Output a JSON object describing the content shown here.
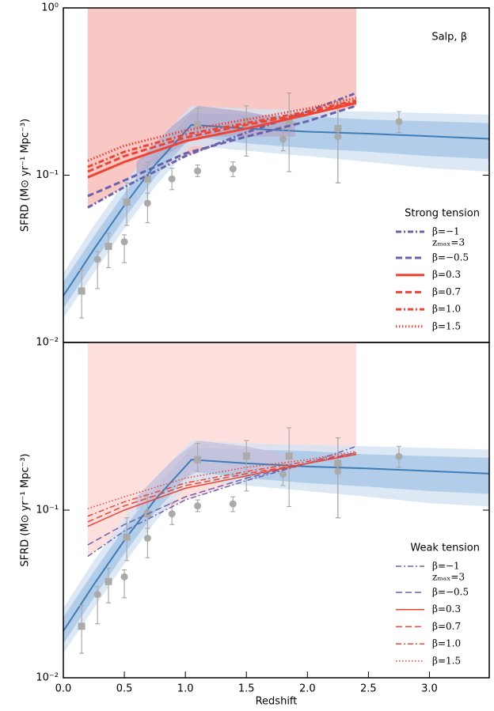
{
  "chart_data": [
    {
      "type": "line",
      "annotation": "Salp, β",
      "ylabel": "SFRD (M⊙ yr⁻¹ Mpc⁻³)",
      "log_y": true,
      "xlim": [
        0,
        3.49
      ],
      "ylim": [
        0.01,
        1
      ],
      "yticks": [
        {
          "value": 1,
          "label": "10⁰"
        },
        {
          "value": 0.1,
          "label": "10⁻¹"
        },
        {
          "value": 0.01,
          "label": "10⁻²"
        }
      ],
      "region": {
        "color": "#f9c7c4",
        "x": [
          0.2,
          0.5,
          1,
          1.5,
          2,
          2.4
        ],
        "lower": [
          0.064,
          0.085,
          0.13,
          0.17,
          0.21,
          0.26
        ]
      },
      "bands": [
        {
          "color": "#d3e3f3",
          "x": [
            0,
            0.25,
            0.5,
            0.75,
            1.05,
            1.5,
            2,
            2.5,
            3,
            3.49
          ],
          "lower": [
            0.014,
            0.026,
            0.048,
            0.085,
            0.15,
            0.14,
            0.13,
            0.12,
            0.11,
            0.105
          ],
          "upper": [
            0.026,
            0.05,
            0.09,
            0.155,
            0.26,
            0.25,
            0.245,
            0.24,
            0.235,
            0.23
          ]
        },
        {
          "color": "#a6c6e6",
          "x": [
            0,
            0.25,
            0.5,
            0.75,
            1.05,
            1.5,
            2,
            2.5,
            3,
            3.49
          ],
          "lower": [
            0.016,
            0.03,
            0.055,
            0.097,
            0.17,
            0.155,
            0.145,
            0.138,
            0.13,
            0.125
          ],
          "upper": [
            0.023,
            0.043,
            0.078,
            0.135,
            0.235,
            0.23,
            0.225,
            0.215,
            0.21,
            0.205
          ]
        },
        {
          "color": "#b7aacb",
          "x": [
            0.6,
            0.9,
            1.1,
            1.5,
            1.9
          ],
          "lower": [
            0.1,
            0.14,
            0.17,
            0.17,
            0.17
          ],
          "upper": [
            0.12,
            0.2,
            0.26,
            0.24,
            0.21
          ]
        }
      ],
      "model": {
        "color": "#3f7cb6",
        "x": [
          0,
          0.25,
          0.5,
          0.75,
          1.05,
          1.5,
          2,
          2.5,
          3,
          3.49
        ],
        "values": [
          0.019,
          0.036,
          0.066,
          0.115,
          0.2,
          0.19,
          0.182,
          0.177,
          0.171,
          0.165
        ]
      },
      "points": [
        {
          "marker": "circle",
          "color": "#aaaaaa",
          "x": [
            0.28,
            0.5,
            0.69,
            0.89,
            1.1,
            1.39,
            1.8,
            2.25,
            2.75
          ],
          "values": [
            0.0314,
            0.04,
            0.068,
            0.095,
            0.106,
            0.109,
            0.164,
            0.17,
            0.209
          ],
          "lo": [
            0.021,
            0.03,
            0.052,
            0.082,
            0.098,
            0.098,
            0.14,
            0.09,
            0.18
          ],
          "hi": [
            0.035,
            0.044,
            0.078,
            0.11,
            0.115,
            0.12,
            0.19,
            0.27,
            0.24
          ]
        },
        {
          "marker": "square",
          "color": "#aaaaaa",
          "x": [
            0.15,
            0.37,
            0.52,
            0.69,
            1.1,
            1.5,
            1.85,
            2.25
          ],
          "values": [
            0.0203,
            0.0375,
            0.069,
            0.095,
            0.2,
            0.21,
            0.21,
            0.19
          ],
          "lo": [
            0.014,
            0.028,
            0.05,
            0.07,
            0.17,
            0.13,
            0.105,
            0.09
          ],
          "hi": [
            0.027,
            0.045,
            0.09,
            0.12,
            0.25,
            0.26,
            0.31,
            0.27
          ]
        }
      ],
      "legend_title": "Strong tension",
      "line_width": 3,
      "series": [
        {
          "name": "β=−1",
          "note": "zₘₐₓ=3",
          "color": "#6b62ad",
          "style": "dashdot",
          "x": [
            0.2,
            0.5,
            1,
            1.5,
            2,
            2.4
          ],
          "values": [
            0.064,
            0.085,
            0.13,
            0.18,
            0.24,
            0.31
          ]
        },
        {
          "name": "β=−0.5",
          "color": "#6b62ad",
          "style": "dashed",
          "x": [
            0.2,
            0.5,
            1,
            1.5,
            2,
            2.4
          ],
          "values": [
            0.075,
            0.093,
            0.135,
            0.17,
            0.21,
            0.26
          ]
        },
        {
          "name": "β=0.3",
          "color": "#ee4433",
          "style": "solid",
          "x": [
            0.2,
            0.5,
            1,
            1.5,
            2,
            2.4
          ],
          "values": [
            0.097,
            0.12,
            0.16,
            0.19,
            0.23,
            0.27
          ]
        },
        {
          "name": "β=0.7",
          "color": "#ee4433",
          "style": "dashed",
          "x": [
            0.2,
            0.5,
            1,
            1.5,
            2,
            2.4
          ],
          "values": [
            0.105,
            0.13,
            0.168,
            0.2,
            0.235,
            0.275
          ]
        },
        {
          "name": "β=1.0",
          "color": "#ee4433",
          "style": "dashdot",
          "x": [
            0.2,
            0.5,
            1,
            1.5,
            2,
            2.4
          ],
          "values": [
            0.112,
            0.138,
            0.175,
            0.205,
            0.24,
            0.28
          ]
        },
        {
          "name": "β=1.5",
          "color": "#ee4433",
          "style": "dotted",
          "x": [
            0.2,
            0.5,
            1,
            1.5,
            2,
            2.4
          ],
          "values": [
            0.122,
            0.15,
            0.185,
            0.215,
            0.25,
            0.29
          ]
        }
      ]
    },
    {
      "type": "line",
      "ylabel": "SFRD (M⊙ yr⁻¹ Mpc⁻³)",
      "xlabel": "Redshift",
      "log_y": true,
      "xlim": [
        0,
        3.49
      ],
      "ylim": [
        0.01,
        1
      ],
      "xticks": [
        {
          "value": 0,
          "label": "0.0"
        },
        {
          "value": 0.5,
          "label": "0.5"
        },
        {
          "value": 1,
          "label": "1.0"
        },
        {
          "value": 1.5,
          "label": "1.5"
        },
        {
          "value": 2,
          "label": "2.0"
        },
        {
          "value": 2.5,
          "label": "2.5"
        },
        {
          "value": 3,
          "label": "3.0"
        }
      ],
      "yticks": [
        {
          "value": 0.1,
          "label": "10⁻¹"
        },
        {
          "value": 0.01,
          "label": "10⁻²"
        }
      ],
      "region": {
        "color": "#fde0de",
        "x": [
          0.2,
          0.5,
          1,
          1.5,
          2,
          2.4
        ],
        "lower": [
          0.053,
          0.075,
          0.115,
          0.15,
          0.19,
          0.24
        ]
      },
      "bands": [
        {
          "color": "#d3e3f3",
          "x": [
            0,
            0.25,
            0.5,
            0.75,
            1.05,
            1.5,
            2,
            2.5,
            3,
            3.49
          ],
          "lower": [
            0.014,
            0.026,
            0.048,
            0.085,
            0.15,
            0.14,
            0.13,
            0.12,
            0.11,
            0.105
          ],
          "upper": [
            0.026,
            0.05,
            0.09,
            0.155,
            0.26,
            0.25,
            0.245,
            0.24,
            0.235,
            0.23
          ]
        },
        {
          "color": "#a6c6e6",
          "x": [
            0,
            0.25,
            0.5,
            0.75,
            1.05,
            1.5,
            2,
            2.5,
            3,
            3.49
          ],
          "lower": [
            0.016,
            0.03,
            0.055,
            0.097,
            0.17,
            0.155,
            0.145,
            0.138,
            0.13,
            0.125
          ],
          "upper": [
            0.023,
            0.043,
            0.078,
            0.135,
            0.235,
            0.23,
            0.225,
            0.215,
            0.21,
            0.205
          ]
        },
        {
          "color": "#c9c0db",
          "x": [
            0.6,
            0.9,
            1.1,
            1.5,
            1.9
          ],
          "lower": [
            0.1,
            0.14,
            0.17,
            0.17,
            0.17
          ],
          "upper": [
            0.12,
            0.2,
            0.26,
            0.24,
            0.21
          ]
        }
      ],
      "model": {
        "color": "#3f7cb6",
        "x": [
          0,
          0.25,
          0.5,
          0.75,
          1.05,
          1.5,
          2,
          2.5,
          3,
          3.49
        ],
        "values": [
          0.019,
          0.036,
          0.066,
          0.115,
          0.2,
          0.19,
          0.182,
          0.177,
          0.171,
          0.165
        ]
      },
      "points": [
        {
          "marker": "circle",
          "color": "#aaaaaa",
          "x": [
            0.28,
            0.5,
            0.69,
            0.89,
            1.1,
            1.39,
            1.8,
            2.25,
            2.75
          ],
          "values": [
            0.0314,
            0.04,
            0.068,
            0.095,
            0.106,
            0.109,
            0.164,
            0.17,
            0.209
          ],
          "lo": [
            0.021,
            0.03,
            0.052,
            0.082,
            0.098,
            0.098,
            0.14,
            0.09,
            0.18
          ],
          "hi": [
            0.035,
            0.044,
            0.078,
            0.11,
            0.115,
            0.12,
            0.19,
            0.27,
            0.24
          ]
        },
        {
          "marker": "square",
          "color": "#aaaaaa",
          "x": [
            0.15,
            0.37,
            0.52,
            0.69,
            1.1,
            1.5,
            1.85,
            2.25
          ],
          "values": [
            0.0203,
            0.0375,
            0.069,
            0.095,
            0.2,
            0.21,
            0.21,
            0.19
          ],
          "lo": [
            0.014,
            0.028,
            0.05,
            0.07,
            0.17,
            0.13,
            0.105,
            0.09
          ],
          "hi": [
            0.027,
            0.045,
            0.09,
            0.12,
            0.25,
            0.26,
            0.31,
            0.27
          ]
        }
      ],
      "legend_title": "Weak tension",
      "line_width": 1.5,
      "series": [
        {
          "name": "β=−1",
          "note": "zₘₐₓ=3",
          "color": "#6b62ad",
          "style": "dashdot",
          "x": [
            0.2,
            0.5,
            1,
            1.5,
            2,
            2.4
          ],
          "values": [
            0.053,
            0.075,
            0.115,
            0.15,
            0.19,
            0.24
          ]
        },
        {
          "name": "β=−0.5",
          "color": "#6b62ad",
          "style": "dashed",
          "x": [
            0.2,
            0.5,
            1,
            1.5,
            2,
            2.4
          ],
          "values": [
            0.062,
            0.082,
            0.12,
            0.155,
            0.19,
            0.22
          ]
        },
        {
          "name": "β=0.3",
          "color": "#ee4433",
          "style": "solid",
          "x": [
            0.2,
            0.5,
            1,
            1.5,
            2,
            2.4
          ],
          "values": [
            0.08,
            0.1,
            0.135,
            0.16,
            0.19,
            0.215
          ]
        },
        {
          "name": "β=0.7",
          "color": "#ee4433",
          "style": "dashed",
          "x": [
            0.2,
            0.5,
            1,
            1.5,
            2,
            2.4
          ],
          "values": [
            0.085,
            0.106,
            0.14,
            0.165,
            0.19,
            0.215
          ]
        },
        {
          "name": "β=1.0",
          "color": "#ee4433",
          "style": "dashdot",
          "x": [
            0.2,
            0.5,
            1,
            1.5,
            2,
            2.4
          ],
          "values": [
            0.092,
            0.112,
            0.145,
            0.17,
            0.195,
            0.22
          ]
        },
        {
          "name": "β=1.5",
          "color": "#ee4433",
          "style": "dotted",
          "x": [
            0.2,
            0.5,
            1,
            1.5,
            2,
            2.4
          ],
          "values": [
            0.102,
            0.12,
            0.155,
            0.18,
            0.2,
            0.225
          ]
        }
      ]
    }
  ]
}
